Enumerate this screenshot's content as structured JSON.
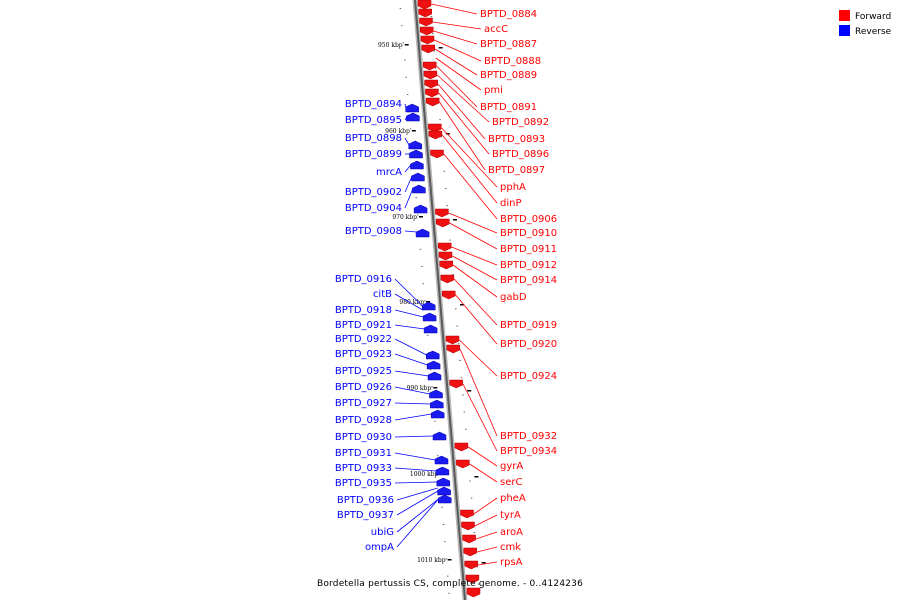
{
  "legend": [
    {
      "label": "Forward",
      "color": "#ff0000"
    },
    {
      "label": "Reverse",
      "color": "#0000ff"
    }
  ],
  "caption": "Bordetella pertussis CS, complete genome. - 0..4124236",
  "scale_ticks": [
    "950 kbp",
    "960 kbp",
    "970 kbp",
    "980 kbp",
    "990 kbp",
    "1000 kbp",
    "1010 kbp"
  ],
  "forward_genes": [
    "BPTD_0884",
    "accC",
    "BPTD_0887",
    "BPTD_0888",
    "BPTD_0889",
    "pmi",
    "BPTD_0891",
    "BPTD_0892",
    "BPTD_0893",
    "BPTD_0896",
    "BPTD_0897",
    "pphA",
    "dinP",
    "BPTD_0906",
    "BPTD_0910",
    "BPTD_0911",
    "BPTD_0912",
    "BPTD_0914",
    "gabD",
    "BPTD_0919",
    "BPTD_0920",
    "BPTD_0924",
    "BPTD_0932",
    "BPTD_0934",
    "gyrA",
    "serC",
    "pheA",
    "tyrA",
    "aroA",
    "cmk",
    "rpsA"
  ],
  "reverse_genes": [
    "BPTD_0894",
    "BPTD_0895",
    "BPTD_0898",
    "BPTD_0899",
    "mrcA",
    "BPTD_0902",
    "BPTD_0904",
    "BPTD_0908",
    "BPTD_0916",
    "citB",
    "BPTD_0918",
    "BPTD_0921",
    "BPTD_0922",
    "BPTD_0923",
    "BPTD_0925",
    "BPTD_0926",
    "BPTD_0927",
    "BPTD_0928",
    "BPTD_0930",
    "BPTD_0931",
    "BPTD_0933",
    "BPTD_0935",
    "BPTD_0936",
    "BPTD_0937",
    "ubiG",
    "ompA"
  ]
}
